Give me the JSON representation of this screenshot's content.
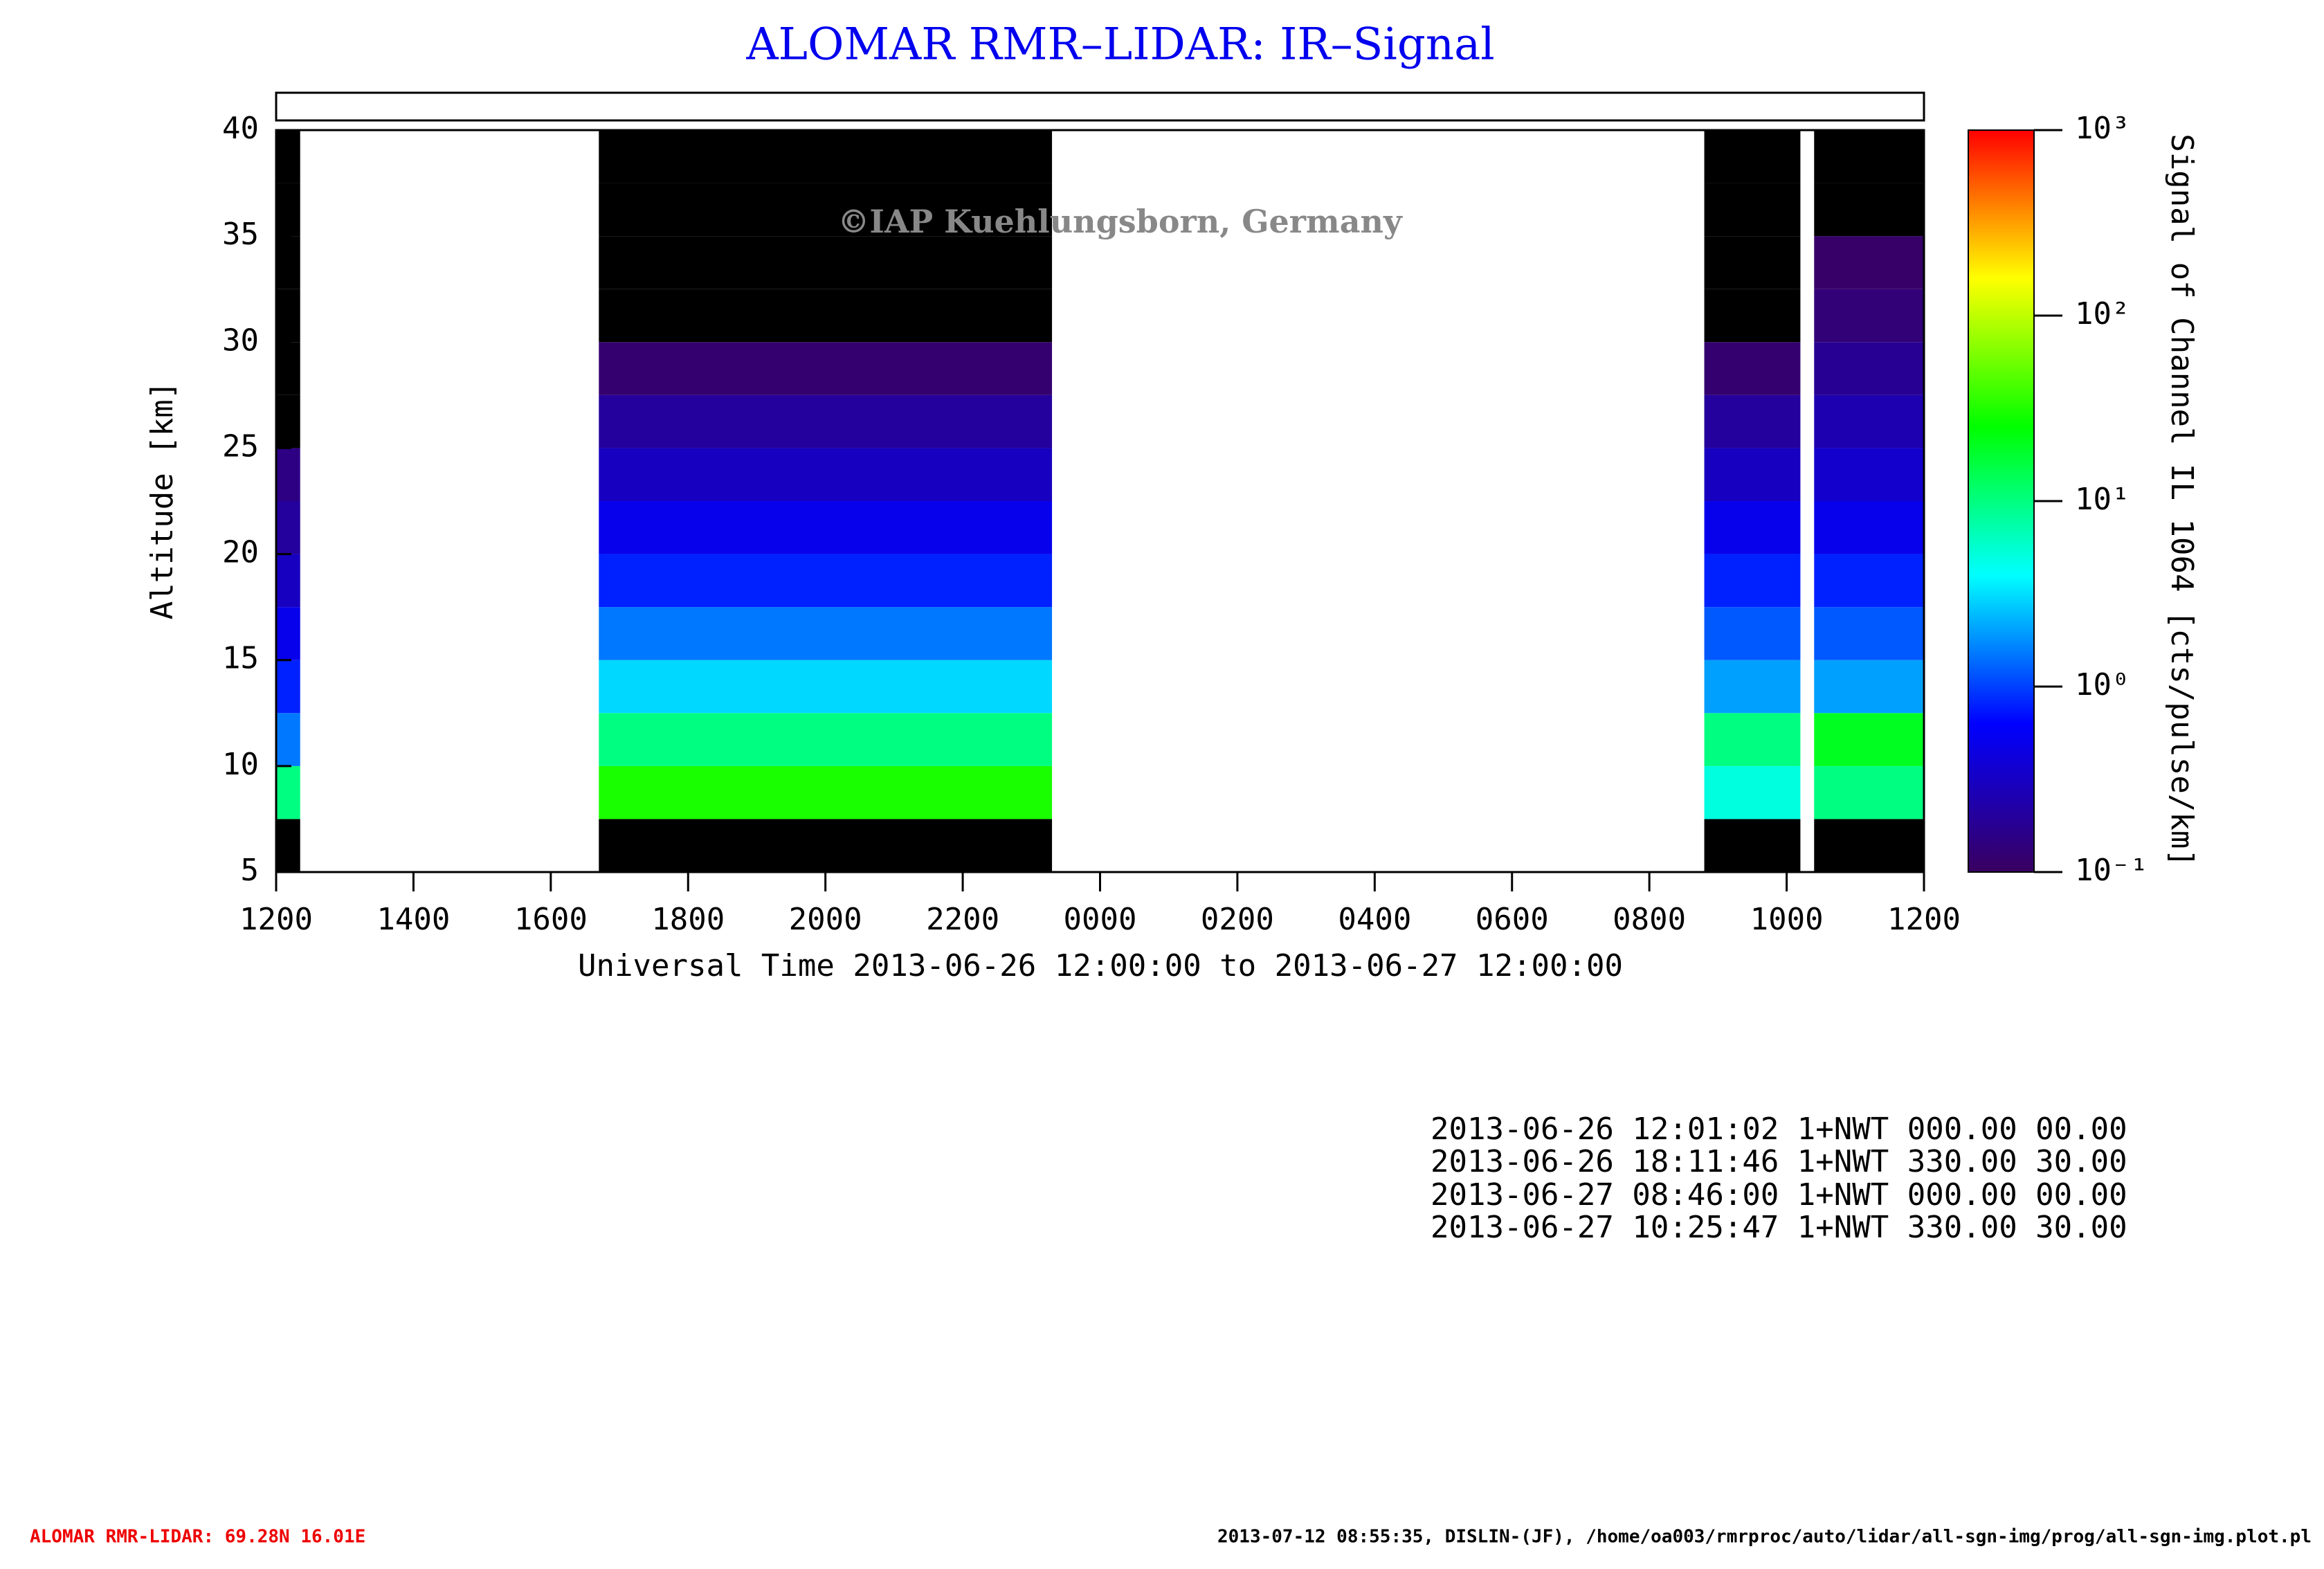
{
  "chart_data": {
    "type": "heatmap",
    "title": "ALOMAR RMR–LIDAR: IR–Signal",
    "watermark": "©IAP Kuehlungsborn, Germany",
    "y_label": "Altitude [km]",
    "x_label": "Universal Time 2013-06-26 12:00:00 to 2013-06-27 12:00:00",
    "xlim": [
      0,
      24
    ],
    "xticks": [
      {
        "value": 0,
        "label": "1200"
      },
      {
        "value": 2,
        "label": "1400"
      },
      {
        "value": 4,
        "label": "1600"
      },
      {
        "value": 6,
        "label": "1800"
      },
      {
        "value": 8,
        "label": "2000"
      },
      {
        "value": 10,
        "label": "2200"
      },
      {
        "value": 12,
        "label": "0000"
      },
      {
        "value": 14,
        "label": "0200"
      },
      {
        "value": 16,
        "label": "0400"
      },
      {
        "value": 18,
        "label": "0600"
      },
      {
        "value": 20,
        "label": "0800"
      },
      {
        "value": 22,
        "label": "1000"
      },
      {
        "value": 24,
        "label": "1200"
      }
    ],
    "ylim": [
      5,
      40
    ],
    "yticks": [
      5,
      10,
      15,
      20,
      25,
      30,
      35,
      40
    ],
    "colorbar_label": "Signal of Channel IL 1064 [cts/pulse/km]",
    "colorbar_log": true,
    "colorbar_lim": [
      0.1,
      1000
    ],
    "colorbar_ticks": [
      {
        "value": 0.1,
        "label": "10⁻¹"
      },
      {
        "value": 1,
        "label": "10⁰"
      },
      {
        "value": 10,
        "label": "10¹"
      },
      {
        "value": 100,
        "label": "10²"
      },
      {
        "value": 1000,
        "label": "10³"
      }
    ],
    "altitude_bins": [
      5,
      7.5,
      10,
      12.5,
      15,
      17.5,
      20,
      22.5,
      25,
      27.5,
      30,
      32.5,
      35,
      37.5,
      40
    ],
    "periods": [
      {
        "start": 0,
        "end": 0.35,
        "values": [
          null,
          10,
          1.5,
          0.8,
          0.5,
          0.3,
          0.2,
          0.15,
          null,
          null,
          null,
          null,
          null,
          null
        ]
      },
      {
        "start": 4.7,
        "end": 11.3,
        "values": [
          null,
          30,
          10,
          3,
          1.5,
          0.8,
          0.5,
          0.3,
          0.2,
          0.12,
          null,
          null,
          null,
          null
        ]
      },
      {
        "start": 20.8,
        "end": 22.2,
        "values": [
          null,
          5,
          10,
          2,
          1.2,
          0.8,
          0.5,
          0.3,
          0.2,
          0.12,
          null,
          null,
          null,
          null
        ]
      },
      {
        "start": 22.4,
        "end": 24,
        "values": [
          null,
          10,
          20,
          2,
          1.2,
          0.8,
          0.5,
          0.35,
          0.25,
          0.18,
          0.13,
          0.11,
          null,
          null
        ]
      }
    ]
  },
  "info_lines": [
    "2013-06-26 12:01:02 1+NWT 000.00 00.00",
    "2013-06-26 18:11:46 1+NWT 330.00 30.00",
    "2013-06-27 08:46:00 1+NWT 000.00 00.00",
    "2013-06-27 10:25:47 1+NWT 330.00 30.00"
  ],
  "footer_left": "ALOMAR RMR-LIDAR: 69.28N 16.01E",
  "footer_right": "2013-07-12 08:55:35, DISLIN-(JF), /home/oa003/rmrproc/auto/lidar/all-sgn-img/prog/all-sgn-img.plot.pl"
}
